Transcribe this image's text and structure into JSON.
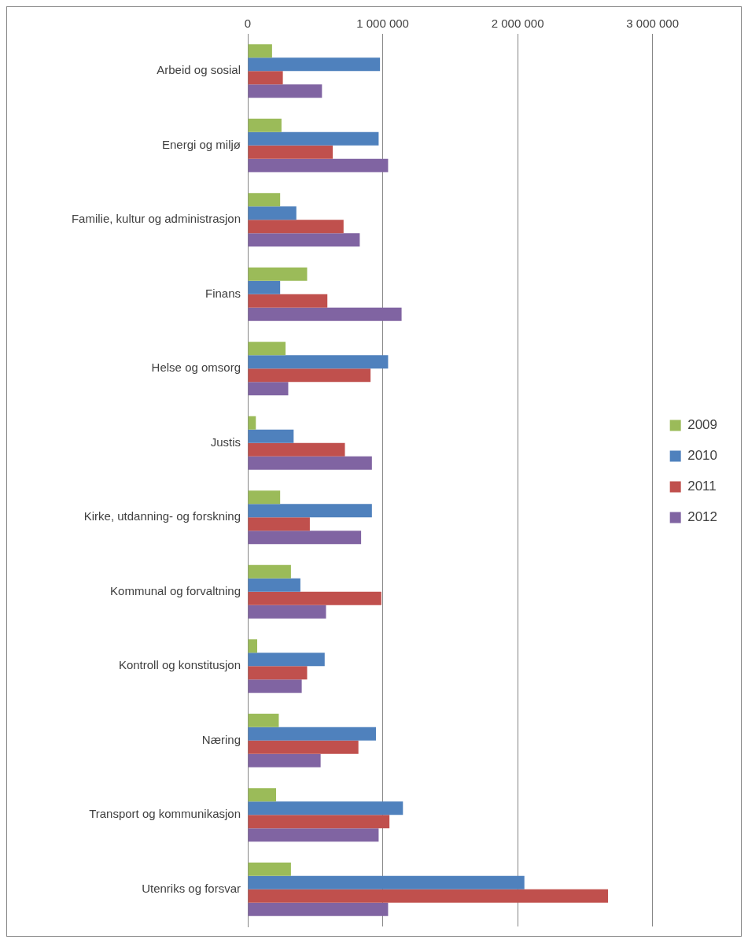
{
  "chart_data": {
    "type": "bar",
    "orientation": "horizontal",
    "categories": [
      "Arbeid og sosial",
      "Energi og miljø",
      "Familie, kultur og administrasjon",
      "Finans",
      "Helse og omsorg",
      "Justis",
      "Kirke, utdanning- og forskning",
      "Kommunal og forvaltning",
      "Kontroll og konstitusjon",
      "Næring",
      "Transport og kommunikasjon",
      "Utenriks og forsvar"
    ],
    "series": [
      {
        "name": "2009",
        "color": "#9bbb59",
        "values": [
          180000,
          250000,
          240000,
          440000,
          280000,
          60000,
          240000,
          320000,
          70000,
          230000,
          210000,
          320000
        ]
      },
      {
        "name": "2010",
        "color": "#4f81bd",
        "values": [
          980000,
          970000,
          360000,
          240000,
          1040000,
          340000,
          920000,
          390000,
          570000,
          950000,
          1150000,
          2050000
        ]
      },
      {
        "name": "2011",
        "color": "#c0504d",
        "values": [
          260000,
          630000,
          710000,
          590000,
          910000,
          720000,
          460000,
          990000,
          440000,
          820000,
          1050000,
          2670000
        ]
      },
      {
        "name": "2012",
        "color": "#8064a2",
        "values": [
          550000,
          1040000,
          830000,
          1140000,
          300000,
          920000,
          840000,
          580000,
          400000,
          540000,
          970000,
          1040000
        ]
      }
    ],
    "xlim": [
      0,
      3000000
    ],
    "xticks": [
      0,
      {
        "value": 1000000,
        "label": "1 000 000"
      },
      {
        "value": 2000000,
        "label": "2 000 000"
      },
      {
        "value": 3000000,
        "label": "3 000 000"
      }
    ],
    "grid": "x",
    "legend": "right"
  }
}
